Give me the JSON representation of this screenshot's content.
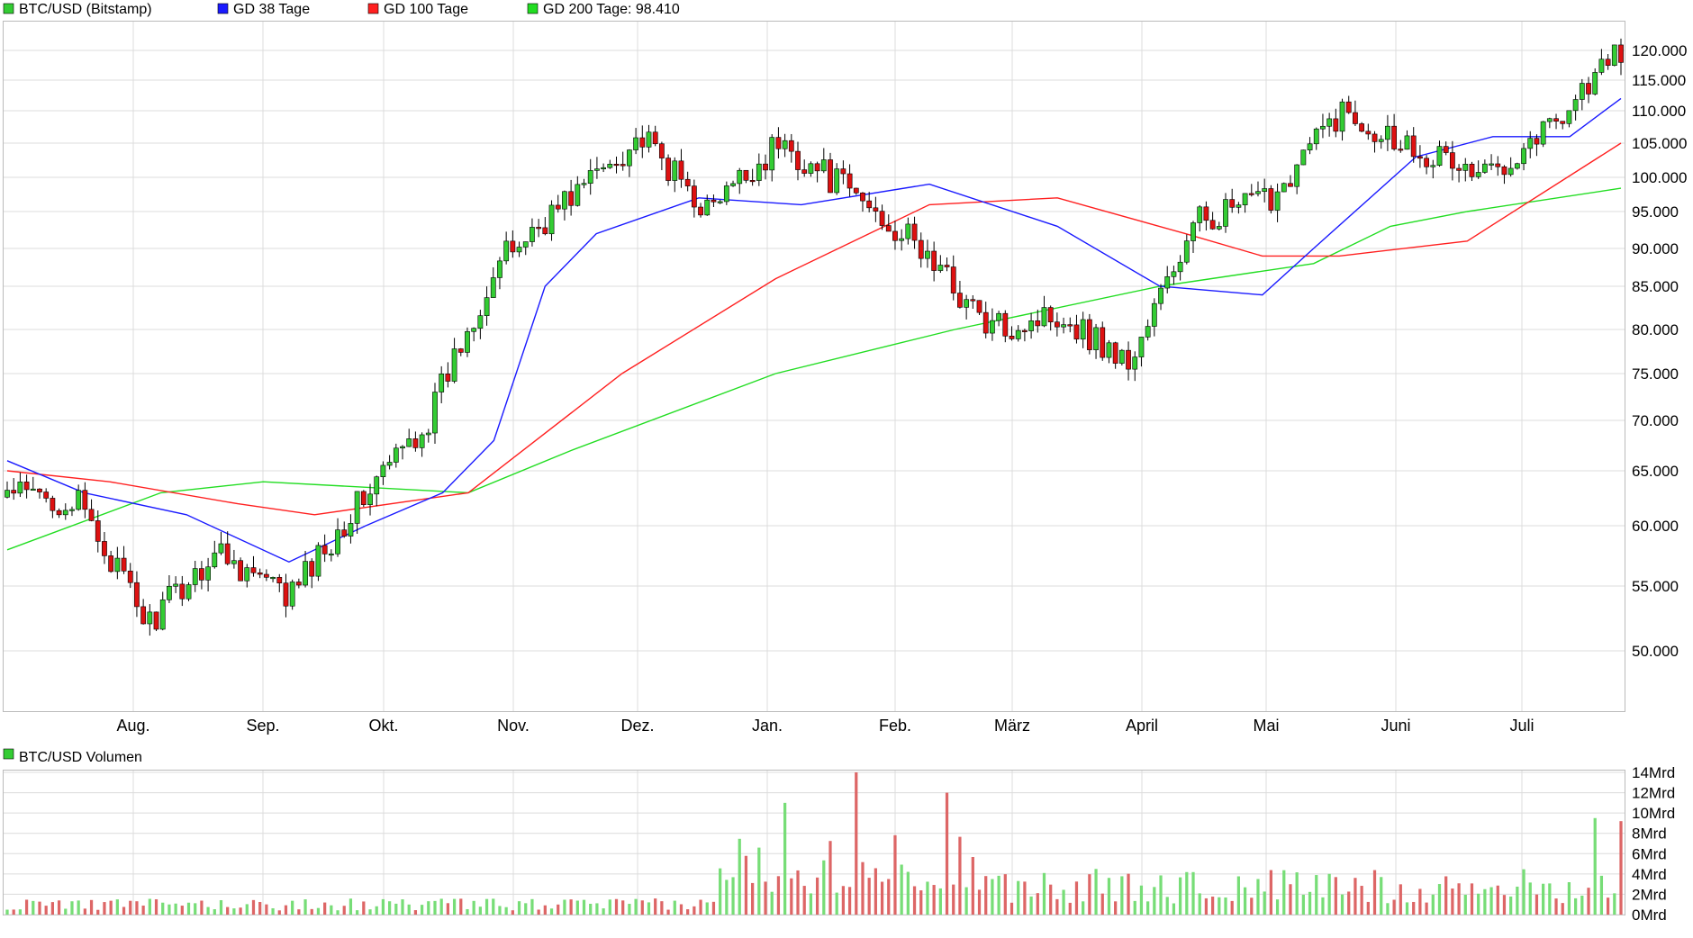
{
  "colors": {
    "up": "#33cc33",
    "down": "#dd1111",
    "gd38": "#1a1aff",
    "gd100": "#ff2020",
    "gd200": "#22dd22",
    "grid": "#dcdcdc",
    "frame": "#bbbbbb",
    "vol_up": "#77dd77",
    "vol_down": "#dd6666"
  },
  "legend": {
    "price_label": "BTC/USD (Bitstamp)",
    "gd38_label": "GD 38 Tage",
    "gd100_label": "GD 100 Tage",
    "gd200_label": "GD 200 Tage: 98.410",
    "volume_label": "BTC/USD Volumen"
  },
  "chart_data": [
    {
      "type": "candlestick",
      "title": "BTC/USD (Bitstamp)",
      "x_tick_labels": [
        "Aug.",
        "Sep.",
        "Okt.",
        "Nov.",
        "Dez.",
        "Jan.",
        "Feb.",
        "März",
        "April",
        "Mai",
        "Juni",
        "Juli"
      ],
      "y_tick_labels": [
        "50.000",
        "55.000",
        "60.000",
        "65.000",
        "70.000",
        "75.000",
        "80.000",
        "85.000",
        "90.000",
        "95.000",
        "100.000",
        "105.000",
        "110.000",
        "115.000",
        "120.000"
      ],
      "y_scale": "log",
      "ylim": [
        45000,
        125000
      ],
      "grid": true,
      "legend_position": "top-left",
      "key_points": [
        {
          "x": "Jul",
          "close": 63000
        },
        {
          "x": "Aug",
          "close": 62000
        },
        {
          "x": "Aug (low)",
          "close": 52000
        },
        {
          "x": "Sep",
          "close": 58000
        },
        {
          "x": "Sep (low)",
          "close": 54000
        },
        {
          "x": "Okt",
          "close": 62000
        },
        {
          "x": "Nov",
          "close": 70000
        },
        {
          "x": "Nov (mid)",
          "close": 88000
        },
        {
          "x": "Dez",
          "close": 97000
        },
        {
          "x": "Dez (high)",
          "close": 106000
        },
        {
          "x": "Jan",
          "close": 95000
        },
        {
          "x": "Jan (high)",
          "close": 105000
        },
        {
          "x": "Feb",
          "close": 98000
        },
        {
          "x": "März",
          "close": 90000
        },
        {
          "x": "März (low)",
          "close": 80000
        },
        {
          "x": "April",
          "close": 82000
        },
        {
          "x": "April (low)",
          "close": 76000
        },
        {
          "x": "April (end)",
          "close": 94000
        },
        {
          "x": "Mai",
          "close": 97000
        },
        {
          "x": "Mai (high)",
          "close": 110000
        },
        {
          "x": "Juni",
          "close": 105000
        },
        {
          "x": "Juni (low)",
          "close": 100000
        },
        {
          "x": "Juli",
          "close": 108000
        },
        {
          "x": "Juli (high)",
          "close": 120000
        }
      ],
      "moving_averages": [
        {
          "name": "GD 38 Tage",
          "points": [
            [
              0,
              66000
            ],
            [
              3,
              63000
            ],
            [
              7,
              61000
            ],
            [
              11,
              57000
            ],
            [
              14,
              60000
            ],
            [
              17,
              63000
            ],
            [
              19,
              68000
            ],
            [
              21,
              85000
            ],
            [
              23,
              92000
            ],
            [
              27,
              97000
            ],
            [
              31,
              96000
            ],
            [
              36,
              99000
            ],
            [
              41,
              93000
            ],
            [
              45,
              85000
            ],
            [
              49,
              84000
            ],
            [
              51,
              90000
            ],
            [
              55,
              103000
            ],
            [
              58,
              106000
            ],
            [
              61,
              106000
            ],
            [
              63,
              112000
            ]
          ]
        },
        {
          "name": "GD 100 Tage",
          "points": [
            [
              0,
              65000
            ],
            [
              4,
              64000
            ],
            [
              9,
              62000
            ],
            [
              12,
              61000
            ],
            [
              18,
              63000
            ],
            [
              24,
              75000
            ],
            [
              30,
              86000
            ],
            [
              36,
              96000
            ],
            [
              41,
              97000
            ],
            [
              46,
              92000
            ],
            [
              49,
              89000
            ],
            [
              52,
              89000
            ],
            [
              57,
              91000
            ],
            [
              63,
              105000
            ]
          ]
        },
        {
          "name": "GD 200 Tage",
          "points": [
            [
              0,
              58000
            ],
            [
              6,
              63000
            ],
            [
              10,
              64000
            ],
            [
              18,
              63000
            ],
            [
              22,
              67000
            ],
            [
              30,
              75000
            ],
            [
              37,
              80000
            ],
            [
              45,
              85000
            ],
            [
              51,
              88000
            ],
            [
              54,
              93000
            ],
            [
              57,
              95000
            ],
            [
              63,
              98410
            ]
          ]
        }
      ]
    },
    {
      "type": "bar",
      "title": "BTC/USD Volumen",
      "y_tick_labels": [
        "0Mrd",
        "2Mrd",
        "4Mrd",
        "6Mrd",
        "8Mrd",
        "10Mrd",
        "12Mrd",
        "14Mrd"
      ],
      "ylim": [
        0,
        14
      ],
      "unit": "Mrd",
      "grid": true,
      "key_values": [
        {
          "x": "Nov (peak 1)",
          "value": 11
        },
        {
          "x": "Nov (peak 2)",
          "value": 14
        },
        {
          "x": "Dez (peak)",
          "value": 12
        },
        {
          "x": "Juli (peak)",
          "value": 9.5
        },
        {
          "x": "Juli (last)",
          "value": 9.2
        }
      ]
    }
  ]
}
